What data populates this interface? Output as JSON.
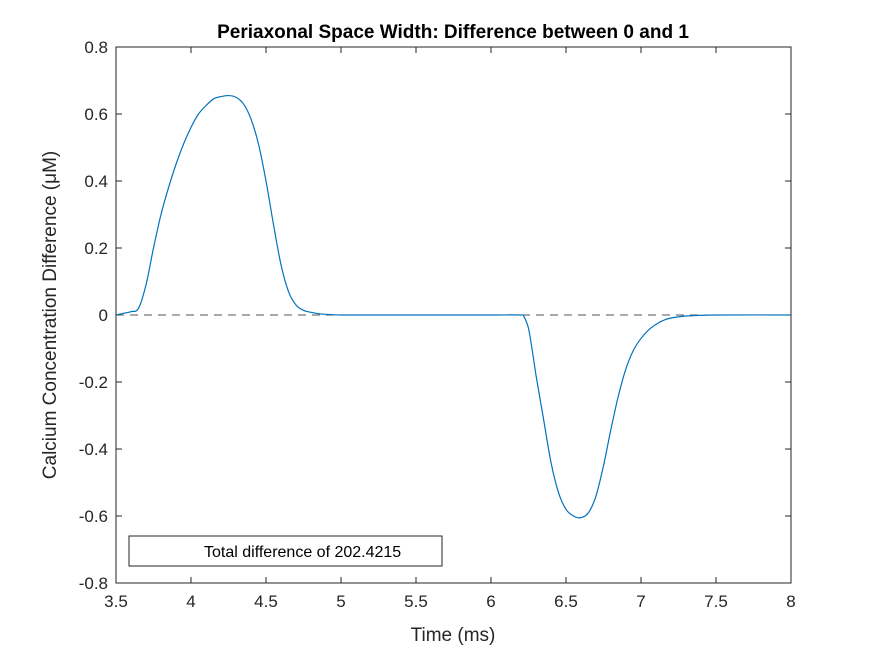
{
  "chart_data": {
    "type": "line",
    "title": "Periaxonal Space Width: Difference between 0 and 1",
    "xlabel": "Time (ms)",
    "ylabel": "Calcium Concentration Difference (μM)",
    "xlim": [
      3.5,
      8
    ],
    "ylim": [
      -0.8,
      0.8
    ],
    "xticks": [
      3.5,
      4,
      4.5,
      5,
      5.5,
      6,
      6.5,
      7,
      7.5,
      8
    ],
    "xtick_labels": [
      "3.5",
      "4",
      "4.5",
      "5",
      "5.5",
      "6",
      "6.5",
      "7",
      "7.5",
      "8"
    ],
    "yticks": [
      -0.8,
      -0.6,
      -0.4,
      -0.2,
      0,
      0.2,
      0.4,
      0.6,
      0.8
    ],
    "ytick_labels": [
      "-0.8",
      "-0.6",
      "-0.4",
      "-0.2",
      "0",
      "0.2",
      "0.4",
      "0.6",
      "0.8"
    ],
    "grid": false,
    "legend": {
      "text": "Total difference of 202.4215",
      "location": "bottom-left"
    },
    "reference_line": {
      "y": 0,
      "style": "dashed",
      "color": "#555555"
    },
    "series": [
      {
        "color": "#0072BD",
        "x": [
          3.5,
          3.55,
          3.6,
          3.65,
          3.7,
          3.75,
          3.8,
          3.85,
          3.9,
          3.95,
          4.0,
          4.05,
          4.1,
          4.15,
          4.2,
          4.25,
          4.3,
          4.35,
          4.4,
          4.45,
          4.5,
          4.55,
          4.6,
          4.65,
          4.7,
          4.75,
          4.8,
          4.85,
          4.9,
          4.95,
          5.0,
          5.1,
          5.3,
          5.6,
          6.0,
          6.2,
          6.22,
          6.25,
          6.28,
          6.3,
          6.35,
          6.4,
          6.45,
          6.5,
          6.55,
          6.6,
          6.65,
          6.7,
          6.75,
          6.8,
          6.85,
          6.9,
          6.95,
          7.0,
          7.05,
          7.1,
          7.15,
          7.2,
          7.3,
          7.5,
          8.0
        ],
        "y": [
          0.0,
          0.005,
          0.01,
          0.02,
          0.09,
          0.2,
          0.3,
          0.38,
          0.45,
          0.51,
          0.56,
          0.6,
          0.625,
          0.645,
          0.652,
          0.655,
          0.65,
          0.63,
          0.585,
          0.51,
          0.4,
          0.27,
          0.15,
          0.07,
          0.03,
          0.014,
          0.008,
          0.004,
          0.002,
          0.001,
          0.0,
          0.0,
          0.0,
          0.0,
          0.0,
          0.0,
          -0.005,
          -0.04,
          -0.12,
          -0.18,
          -0.31,
          -0.44,
          -0.53,
          -0.58,
          -0.6,
          -0.605,
          -0.59,
          -0.54,
          -0.45,
          -0.34,
          -0.24,
          -0.16,
          -0.105,
          -0.07,
          -0.045,
          -0.028,
          -0.016,
          -0.009,
          -0.003,
          0.0,
          0.0
        ]
      }
    ]
  }
}
